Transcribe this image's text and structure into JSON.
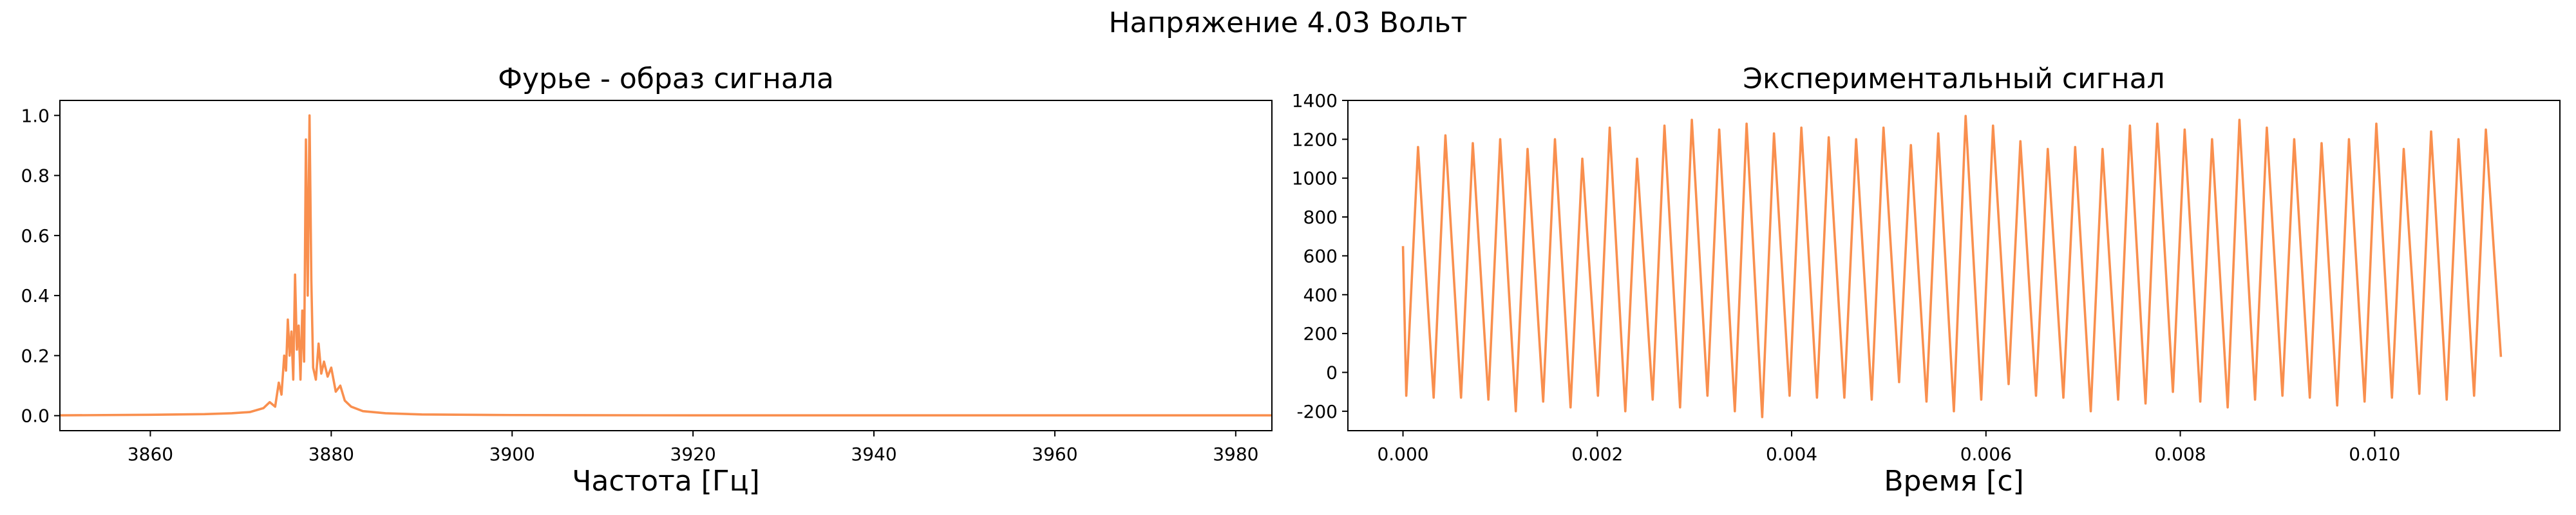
{
  "suptitle": "Напряжение 4.03 Вольт",
  "colors": {
    "series": "#f98f4e",
    "axis": "#000000"
  },
  "chart_data": [
    {
      "type": "line",
      "title": "Фурье - образ сигнала",
      "xlabel": "Частота [Гц]",
      "ylabel": "",
      "xlim": [
        3850,
        3984
      ],
      "ylim": [
        -0.05,
        1.05
      ],
      "xticks": [
        3860,
        3880,
        3900,
        3920,
        3940,
        3960,
        3980
      ],
      "yticks": [
        0.0,
        0.2,
        0.4,
        0.6,
        0.8,
        1.0
      ],
      "grid": false,
      "series": [
        {
          "points": [
            [
              3850,
              0.001
            ],
            [
              3860,
              0.003
            ],
            [
              3866,
              0.005
            ],
            [
              3869,
              0.008
            ],
            [
              3871,
              0.012
            ],
            [
              3872.5,
              0.025
            ],
            [
              3873.2,
              0.045
            ],
            [
              3873.8,
              0.03
            ],
            [
              3874.2,
              0.11
            ],
            [
              3874.5,
              0.07
            ],
            [
              3874.8,
              0.2
            ],
            [
              3875.0,
              0.15
            ],
            [
              3875.2,
              0.32
            ],
            [
              3875.4,
              0.2
            ],
            [
              3875.6,
              0.28
            ],
            [
              3875.8,
              0.12
            ],
            [
              3876.0,
              0.47
            ],
            [
              3876.2,
              0.22
            ],
            [
              3876.4,
              0.3
            ],
            [
              3876.6,
              0.12
            ],
            [
              3876.8,
              0.35
            ],
            [
              3877.0,
              0.18
            ],
            [
              3877.2,
              0.92
            ],
            [
              3877.4,
              0.4
            ],
            [
              3877.6,
              1.0
            ],
            [
              3877.8,
              0.45
            ],
            [
              3878.0,
              0.16
            ],
            [
              3878.3,
              0.12
            ],
            [
              3878.6,
              0.24
            ],
            [
              3878.9,
              0.14
            ],
            [
              3879.2,
              0.18
            ],
            [
              3879.6,
              0.13
            ],
            [
              3880.0,
              0.16
            ],
            [
              3880.5,
              0.08
            ],
            [
              3881.0,
              0.1
            ],
            [
              3881.5,
              0.05
            ],
            [
              3882.2,
              0.03
            ],
            [
              3883.5,
              0.015
            ],
            [
              3886,
              0.008
            ],
            [
              3890,
              0.004
            ],
            [
              3900,
              0.002
            ],
            [
              3920,
              0.001
            ],
            [
              3950,
              0.001
            ],
            [
              3984,
              0.001
            ]
          ]
        }
      ]
    },
    {
      "type": "line",
      "title": "Экспериментальный сигнал",
      "xlabel": "Время [с]",
      "ylabel": "",
      "xlim": [
        -0.000567,
        0.011907
      ],
      "ylim": [
        -300,
        1400
      ],
      "xticks": [
        0.0,
        0.002,
        0.004,
        0.006,
        0.008,
        0.01
      ],
      "xtick_labels": [
        "0.000",
        "0.002",
        "0.004",
        "0.006",
        "0.008",
        "0.010"
      ],
      "yticks": [
        -200,
        0,
        200,
        400,
        600,
        800,
        1000,
        1200,
        1400
      ],
      "grid": false,
      "sample_count": 40,
      "start_value": 650,
      "end_value": 80,
      "series": [
        {
          "peaks": [
            1160,
            1220,
            1180,
            1200,
            1150,
            1200,
            1100,
            1260,
            1100,
            1270,
            1300,
            1250,
            1280,
            1230,
            1260,
            1210,
            1200,
            1260,
            1170,
            1230,
            1320,
            1270,
            1190,
            1150,
            1160,
            1150,
            1270,
            1280,
            1250,
            1200,
            1300,
            1260,
            1200,
            1180,
            1200,
            1280,
            1150,
            1240,
            1200,
            1250
          ],
          "troughs": [
            -120,
            -130,
            -130,
            -140,
            -200,
            -150,
            -180,
            -120,
            -200,
            -140,
            -180,
            -120,
            -200,
            -230,
            -120,
            -130,
            -130,
            -140,
            -50,
            -150,
            -200,
            -140,
            -60,
            -120,
            -130,
            -200,
            -140,
            -160,
            -100,
            -150,
            -180,
            -140,
            -120,
            -130,
            -170,
            -150,
            -130,
            -110,
            -140,
            -120
          ]
        }
      ]
    }
  ]
}
